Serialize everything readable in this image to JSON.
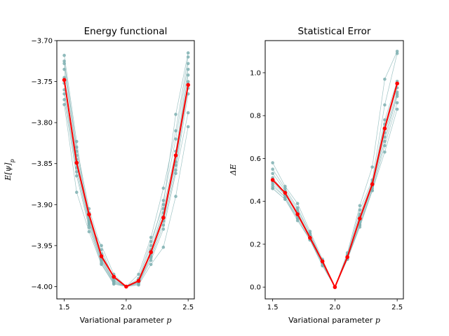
{
  "chart_data": [
    {
      "type": "line",
      "title": "Energy functional",
      "xlabel": "Variational parameter",
      "xlabel_var": "p",
      "ylabel": "E[ψ]_p",
      "xlim": [
        1.44,
        2.55
      ],
      "ylim": [
        -4.015,
        -3.7
      ],
      "xticks": [
        1.5,
        2.0,
        2.5
      ],
      "xtick_labels": [
        "1.5",
        "2.0",
        "2.5"
      ],
      "yticks": [
        -4.0,
        -3.95,
        -3.9,
        -3.85,
        -3.8,
        -3.75,
        -3.7
      ],
      "ytick_labels": [
        "−4.00",
        "−3.95",
        "−3.90",
        "−3.85",
        "−3.80",
        "−3.75",
        "−3.70"
      ],
      "grid": false,
      "x": [
        1.5,
        1.6,
        1.7,
        1.8,
        1.9,
        2.0,
        2.1,
        2.2,
        2.3,
        2.4,
        2.5
      ],
      "series_color": "#7fb0b2",
      "mean_color": "#ff0000",
      "series": [
        {
          "values": [
            -3.718,
            -3.823,
            -3.923,
            -3.95,
            -3.985,
            -4.0,
            -3.99,
            -3.945,
            -3.9,
            -3.79,
            -3.715
          ]
        },
        {
          "values": [
            -3.725,
            -3.83,
            -3.905,
            -3.955,
            -3.99,
            -4.0,
            -3.985,
            -3.94,
            -3.88,
            -3.81,
            -3.72
          ]
        },
        {
          "values": [
            -3.728,
            -3.835,
            -3.91,
            -3.96,
            -3.988,
            -4.0,
            -3.992,
            -3.95,
            -3.895,
            -3.82,
            -3.728
          ]
        },
        {
          "values": [
            -3.735,
            -3.84,
            -3.915,
            -3.962,
            -3.99,
            -4.0,
            -3.995,
            -3.955,
            -3.905,
            -3.835,
            -3.735
          ]
        },
        {
          "values": [
            -3.745,
            -3.845,
            -3.917,
            -3.965,
            -3.992,
            -4.0,
            -3.993,
            -3.957,
            -3.91,
            -3.84,
            -3.742
          ]
        },
        {
          "values": [
            -3.752,
            -3.85,
            -3.92,
            -3.967,
            -3.993,
            -4.0,
            -3.994,
            -3.96,
            -3.915,
            -3.848,
            -3.75
          ]
        },
        {
          "values": [
            -3.76,
            -3.855,
            -3.922,
            -3.968,
            -3.994,
            -4.0,
            -3.995,
            -3.963,
            -3.92,
            -3.852,
            -3.758
          ]
        },
        {
          "values": [
            -3.765,
            -3.86,
            -3.925,
            -3.97,
            -3.995,
            -4.0,
            -3.996,
            -3.965,
            -3.925,
            -3.858,
            -3.765
          ]
        },
        {
          "values": [
            -3.772,
            -3.865,
            -3.928,
            -3.972,
            -3.996,
            -4.0,
            -3.997,
            -3.968,
            -3.93,
            -3.862,
            -3.788
          ]
        },
        {
          "values": [
            -3.778,
            -3.885,
            -3.933,
            -3.973,
            -3.997,
            -4.0,
            -3.998,
            -3.973,
            -3.952,
            -3.89,
            -3.805
          ]
        }
      ],
      "mean": [
        -3.748,
        -3.849,
        -3.912,
        -3.963,
        -3.988,
        -4.0,
        -3.993,
        -3.958,
        -3.916,
        -3.84,
        -3.754
      ]
    },
    {
      "type": "line",
      "title": "Statistical Error",
      "xlabel": "Variational parameter",
      "xlabel_var": "p",
      "ylabel": "ΔE",
      "xlim": [
        1.44,
        2.55
      ],
      "ylim": [
        -0.055,
        1.15
      ],
      "xticks": [
        1.5,
        2.0,
        2.5
      ],
      "xtick_labels": [
        "1.5",
        "2.0",
        "2.5"
      ],
      "yticks": [
        0.0,
        0.2,
        0.4,
        0.6,
        0.8,
        1.0
      ],
      "ytick_labels": [
        "0.0",
        "0.2",
        "0.4",
        "0.6",
        "0.8",
        "1.0"
      ],
      "grid": false,
      "x": [
        1.5,
        1.6,
        1.7,
        1.8,
        1.9,
        2.0,
        2.1,
        2.2,
        2.3,
        2.4,
        2.5
      ],
      "series_color": "#7fb0b2",
      "mean_color": "#ff0000",
      "series": [
        {
          "values": [
            0.58,
            0.47,
            0.39,
            0.26,
            0.13,
            0.0,
            0.16,
            0.38,
            0.56,
            0.97,
            1.1
          ]
        },
        {
          "values": [
            0.55,
            0.46,
            0.37,
            0.25,
            0.12,
            0.0,
            0.15,
            0.36,
            0.5,
            0.85,
            1.09
          ]
        },
        {
          "values": [
            0.53,
            0.45,
            0.36,
            0.25,
            0.12,
            0.0,
            0.15,
            0.34,
            0.49,
            0.78,
            0.96
          ]
        },
        {
          "values": [
            0.51,
            0.44,
            0.35,
            0.24,
            0.12,
            0.0,
            0.14,
            0.33,
            0.48,
            0.76,
            0.95
          ]
        },
        {
          "values": [
            0.5,
            0.43,
            0.34,
            0.24,
            0.11,
            0.0,
            0.14,
            0.32,
            0.48,
            0.74,
            0.93
          ]
        },
        {
          "values": [
            0.49,
            0.43,
            0.34,
            0.23,
            0.11,
            0.0,
            0.14,
            0.31,
            0.47,
            0.72,
            0.91
          ]
        },
        {
          "values": [
            0.48,
            0.42,
            0.33,
            0.23,
            0.11,
            0.0,
            0.13,
            0.3,
            0.47,
            0.7,
            0.9
          ]
        },
        {
          "values": [
            0.47,
            0.42,
            0.32,
            0.22,
            0.11,
            0.0,
            0.13,
            0.29,
            0.46,
            0.68,
            0.89
          ]
        },
        {
          "values": [
            0.46,
            0.41,
            0.32,
            0.22,
            0.1,
            0.0,
            0.13,
            0.29,
            0.45,
            0.66,
            0.86
          ]
        },
        {
          "values": [
            0.46,
            0.41,
            0.31,
            0.22,
            0.1,
            0.0,
            0.13,
            0.28,
            0.45,
            0.63,
            0.83
          ]
        }
      ],
      "mean": [
        0.5,
        0.44,
        0.34,
        0.23,
        0.12,
        0.0,
        0.14,
        0.32,
        0.48,
        0.74,
        0.95
      ]
    }
  ]
}
